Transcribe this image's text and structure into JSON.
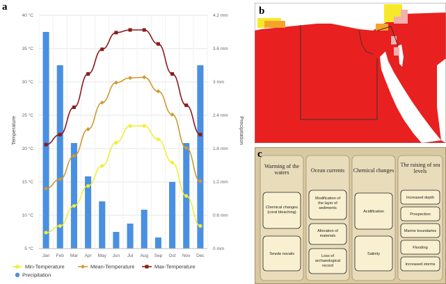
{
  "panel_a": {
    "label": "a",
    "chart_data": {
      "type": "bar+line",
      "categories": [
        "Jan",
        "Feb",
        "Mar",
        "Apr",
        "May",
        "Jun",
        "Jul",
        "Aug",
        "Sep",
        "Oct",
        "Nov",
        "Dec"
      ],
      "series": [
        {
          "name": "Precipitation",
          "kind": "bar",
          "axis": "right",
          "color": "#4a90e2",
          "values": [
            3.9,
            3.3,
            1.9,
            1.3,
            0.85,
            0.3,
            0.45,
            0.7,
            0.2,
            1.2,
            1.9,
            3.3
          ]
        },
        {
          "name": "Min-Temperature",
          "kind": "line",
          "axis": "left",
          "color": "#f2ee3a",
          "values": [
            7.4,
            8.4,
            11.4,
            14.4,
            17.4,
            20.9,
            23.4,
            23.4,
            21.4,
            17.9,
            12.9,
            8.4
          ]
        },
        {
          "name": "Mean-Temperature",
          "kind": "line",
          "axis": "left",
          "color": "#d09a2e",
          "values": [
            14.0,
            15.4,
            18.9,
            22.9,
            26.9,
            29.9,
            30.6,
            30.7,
            28.6,
            25.1,
            20.1,
            15.1
          ]
        },
        {
          "name": "Max-Temperature",
          "kind": "line",
          "axis": "left",
          "color": "#8b1a1a",
          "values": [
            20.6,
            22.1,
            26.2,
            31.2,
            34.9,
            37.4,
            37.8,
            37.8,
            35.7,
            31.2,
            26.5,
            22.1
          ]
        }
      ],
      "y_left": {
        "label": "Temperature",
        "range": [
          5,
          40
        ],
        "ticks": [
          "5 °C",
          "10 °C",
          "15 °C",
          "20 °C",
          "25 °C",
          "30 °C",
          "35 °C",
          "40 °C"
        ]
      },
      "y_right": {
        "label": "Precipitation",
        "range": [
          0,
          4.2
        ],
        "ticks": [
          "0 mm",
          "0.6 mm",
          "1.2 mm",
          "1.8 mm",
          "2.4 mm",
          "3 mm",
          "3.6 mm",
          "4.2 mm"
        ]
      },
      "grid": true,
      "legend_position": "bottom-left"
    }
  },
  "panel_b": {
    "label": "b",
    "map": {
      "fill_color": "#e8201f",
      "sea_color": "#ffffff",
      "border_color": "#333333",
      "highlight_colors": [
        "#f7e92a",
        "#f4a42a",
        "#f3b0b0"
      ]
    }
  },
  "panel_c": {
    "label": "c",
    "background_color": "#d8c9a3",
    "box_color": "#f8f0d0",
    "columns": [
      {
        "title": "Warming of the waters",
        "items": [
          "Chemical changes (coral bleaching)",
          "Teredo novalis"
        ]
      },
      {
        "title": "Ocean currents",
        "items": [
          "Modification of the layer of sediments",
          "Alteration of materials",
          "Loss of archaeological record"
        ]
      },
      {
        "title": "Chemical changes",
        "items": [
          "Acidification",
          "Salinity"
        ]
      },
      {
        "title": "The raising of sea levels",
        "items": [
          "Increased depth",
          "Prospection",
          "Marine boundaries",
          "Flooding",
          "Increased storms"
        ]
      }
    ]
  }
}
